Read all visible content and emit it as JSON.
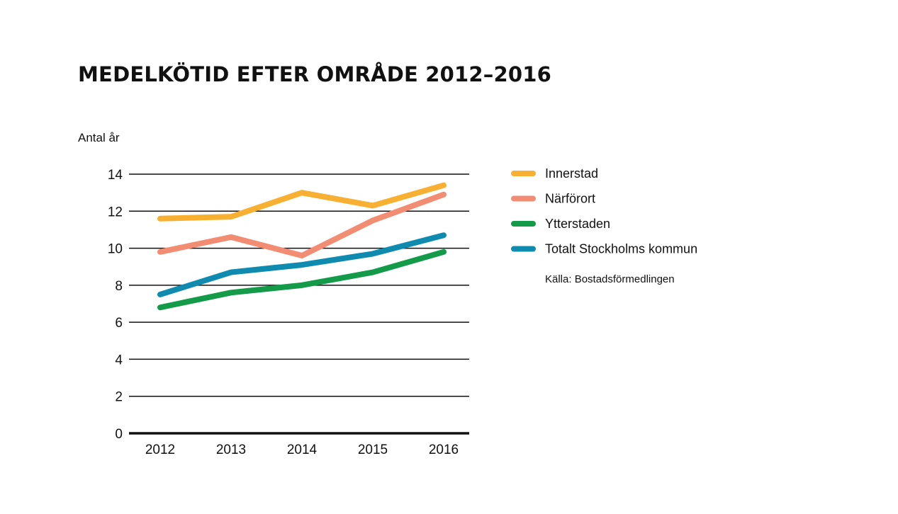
{
  "chart_data": {
    "type": "line",
    "title": "MEDELKÖTID EFTER OMRÅDE 2012–2016",
    "ylabel": "Antal år",
    "xlabel": "",
    "x": [
      "2012",
      "2013",
      "2014",
      "2015",
      "2016"
    ],
    "ylim": [
      0,
      14
    ],
    "yticks": [
      0,
      2,
      4,
      6,
      8,
      10,
      12,
      14
    ],
    "grid": true,
    "legend_position": "right",
    "series": [
      {
        "name": "Innerstad",
        "color": "#f7b032",
        "values": [
          11.6,
          11.7,
          13.0,
          12.3,
          13.4
        ]
      },
      {
        "name": "Närförort",
        "color": "#f28c72",
        "values": [
          9.8,
          10.6,
          9.6,
          11.5,
          12.9
        ]
      },
      {
        "name": "Ytterstaden",
        "color": "#139b4a",
        "values": [
          6.8,
          7.6,
          8.0,
          8.7,
          9.8
        ]
      },
      {
        "name": "Totalt Stockholms kommun",
        "color": "#0f8bb0",
        "values": [
          7.5,
          8.7,
          9.1,
          9.7,
          10.7
        ]
      }
    ],
    "source": "Källa: Bostadsförmedlingen"
  }
}
